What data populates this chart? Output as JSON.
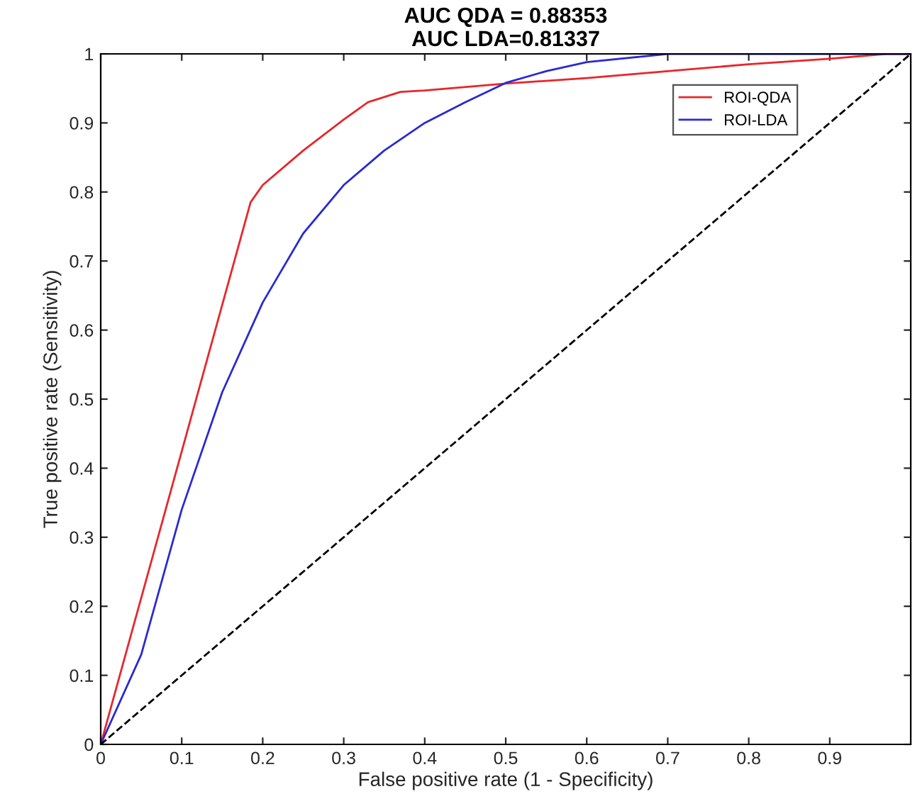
{
  "chart_data": {
    "type": "line",
    "title": "AUC QDA = 0.88353\nAUC LDA=0.81337",
    "xlabel": "False positive rate (1 - Specificity)",
    "ylabel": "True positive rate (Sensitivity)",
    "xlim": [
      0,
      1
    ],
    "ylim": [
      0,
      1
    ],
    "xticks": [
      0,
      0.1,
      0.2,
      0.3,
      0.4,
      0.5,
      0.6,
      0.7,
      0.8,
      0.9
    ],
    "yticks": [
      0,
      0.1,
      0.2,
      0.3,
      0.4,
      0.5,
      0.6,
      0.7,
      0.8,
      0.9,
      1
    ],
    "grid": false,
    "legend": "top right",
    "marker": "none",
    "series": [
      {
        "name": "ROI-QDA",
        "color": "#e8262b",
        "x": [
          0,
          0.185,
          0.2,
          0.25,
          0.3,
          0.33,
          0.37,
          0.4,
          0.5,
          0.6,
          0.7,
          0.8,
          0.9,
          0.97,
          1
        ],
        "values": [
          0,
          0.785,
          0.81,
          0.86,
          0.905,
          0.93,
          0.945,
          0.947,
          0.957,
          0.965,
          0.975,
          0.985,
          0.993,
          1,
          1
        ]
      },
      {
        "name": "ROI-LDA",
        "color": "#2a2ad0",
        "x": [
          0,
          0.05,
          0.1,
          0.15,
          0.2,
          0.25,
          0.3,
          0.35,
          0.4,
          0.45,
          0.5,
          0.55,
          0.6,
          0.7,
          1
        ],
        "values": [
          0,
          0.13,
          0.34,
          0.51,
          0.64,
          0.74,
          0.81,
          0.86,
          0.9,
          0.93,
          0.958,
          0.975,
          0.988,
          1,
          1
        ]
      },
      {
        "color": "#000000",
        "line_style": "dashed",
        "x": [
          0,
          1
        ],
        "values": [
          0,
          1
        ]
      }
    ]
  }
}
